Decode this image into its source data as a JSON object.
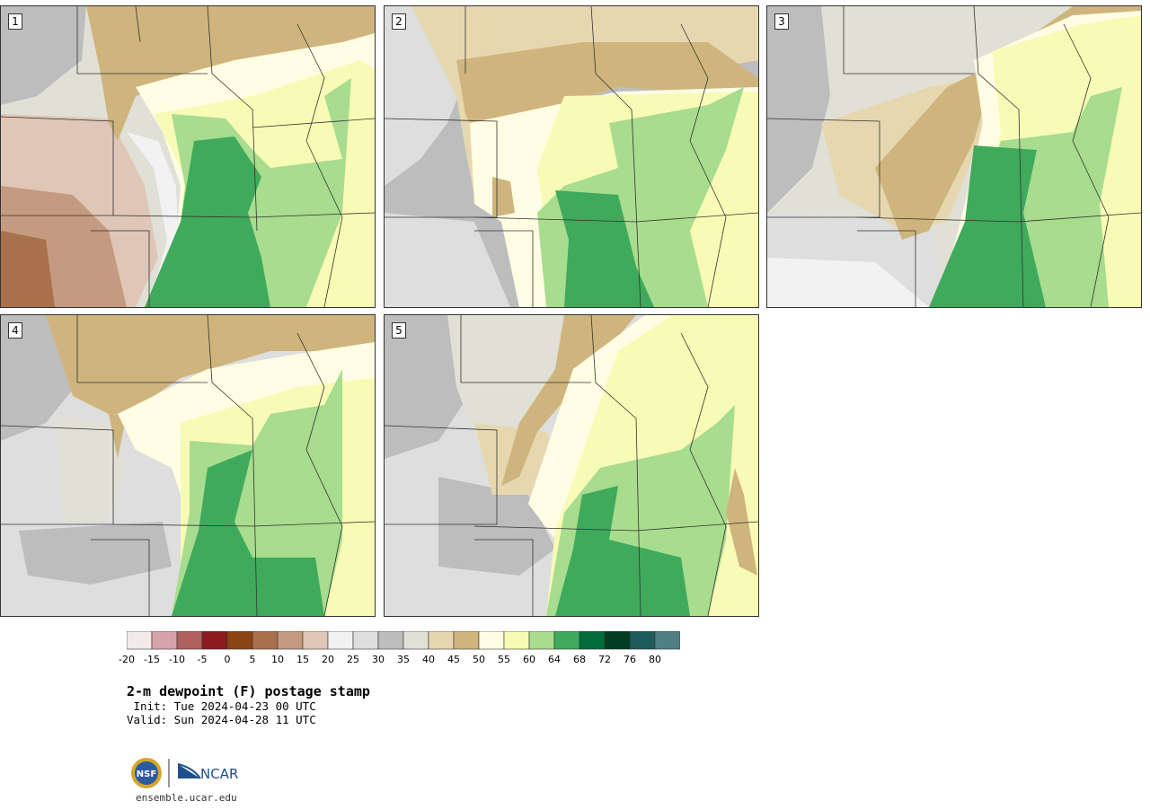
{
  "panels": [
    {
      "label": "1"
    },
    {
      "label": "2"
    },
    {
      "label": "3"
    },
    {
      "label": "4"
    },
    {
      "label": "5"
    }
  ],
  "colorbar": {
    "ticks": [
      "-20",
      "-15",
      "-10",
      "-5",
      "0",
      "5",
      "10",
      "15",
      "20",
      "25",
      "30",
      "35",
      "40",
      "45",
      "50",
      "55",
      "60",
      "64",
      "68",
      "72",
      "76",
      "80"
    ],
    "colors": [
      "#f5e9ec",
      "#d4a4aa",
      "#b0605f",
      "#8b1a1f",
      "#8b4513",
      "#a8714c",
      "#c49a80",
      "#dfc6b6",
      "#f2f2f2",
      "#dedede",
      "#bdbdbd",
      "#e0e0d6",
      "#e6d7b0",
      "#cfb57d",
      "#fffde4",
      "#f7fbb5",
      "#a8dc8e",
      "#3faa5b",
      "#046c3a",
      "#003d22",
      "#1d5b5a",
      "#507f84"
    ]
  },
  "title": "2-m dewpoint (F) postage stamp",
  "init": " Init: Tue 2024-04-23 00 UTC",
  "valid": "Valid: Sun 2024-04-28 11 UTC",
  "logo": {
    "nsf": "NSF",
    "ncar": "NCAR"
  },
  "site": "ensemble.ucar.edu"
}
